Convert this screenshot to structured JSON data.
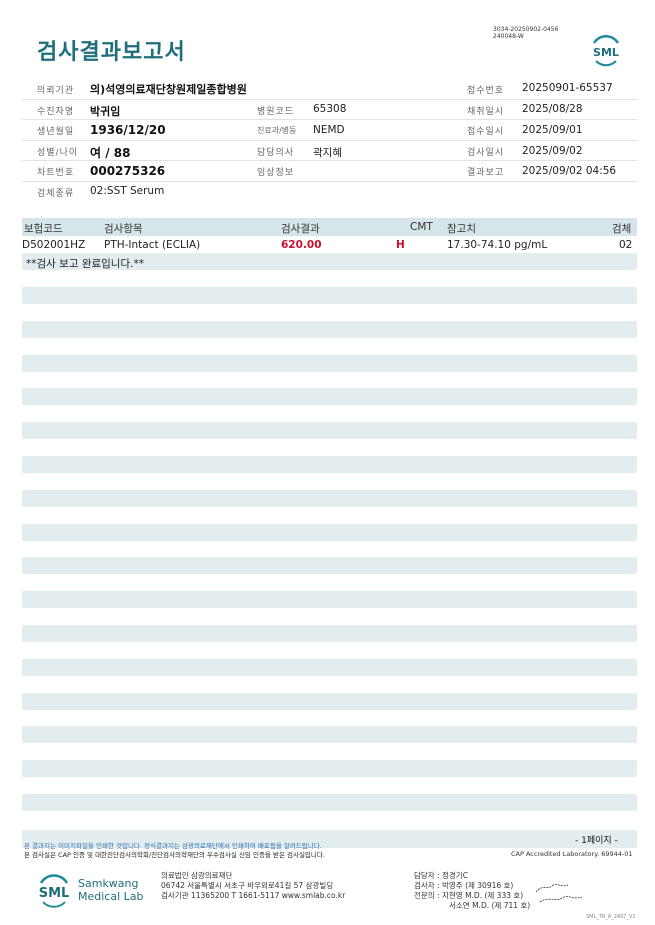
{
  "header": {
    "title": "검사결과보고서",
    "doc_id_line1": "3034-20250902-0456",
    "doc_id_line2": "240048-W",
    "logo_text": "SML"
  },
  "info": {
    "institution_label": "의뢰기관",
    "institution": "의)석영의료재단창원제일종합병원",
    "receipt_no_label": "접수번호",
    "receipt_no": "20250901-65537",
    "patient_label": "수진자명",
    "patient": "박귀임",
    "hospital_code_label": "병원코드",
    "hospital_code": "65308",
    "collected_label": "채취일시",
    "collected": "2025/08/28",
    "dob_label": "생년월일",
    "dob": "1936/12/20",
    "dept_label": "진료과/병동",
    "dept": "NEMD",
    "received_label": "접수일시",
    "received": "2025/09/01",
    "sex_age_label": "성별/나이",
    "sex_age": "여 / 88",
    "doctor_label": "담당의사",
    "doctor": "곽지혜",
    "tested_label": "검사일시",
    "tested": "2025/09/02",
    "chart_no_label": "차트번호",
    "chart_no": "000275326",
    "clinical_label": "임상정보",
    "clinical": "",
    "reported_label": "결과보고",
    "reported": "2025/09/02 04:56",
    "specimen_label": "검체종류",
    "specimen": "02:SST Serum"
  },
  "table": {
    "headers": [
      "보험코드",
      "검사항목",
      "검사결과",
      "CMT",
      "참고치",
      "검체"
    ],
    "rows": [
      {
        "code": "D502001HZ",
        "item": "PTH-Intact (ECLIA)",
        "result": "620.00",
        "cmt": "H",
        "reference": "17.30-74.10 pg/mL",
        "specimen": "02"
      }
    ],
    "note": "**검사 보고 완료입니다.**",
    "result_high_color": "#c8102e"
  },
  "footer": {
    "disclaimer_1": "본 결과지는 이미지파일을 인쇄한 것입니다. 정식결과지는 삼광의료재단에서 인쇄하여 배포됨을 알려드립니다.",
    "disclaimer_2": "본 검사실은 CAP 인증 및 대한진단검사의학회/진단검사의학재단의 우수검사실 신임 인증을 받은 검사실입니다.",
    "page": "- 1페이지 -",
    "cap": "CAP Accredited Laboratory. 69944-01",
    "logo_line1": "Samkwang",
    "logo_line2": "Medical Lab",
    "org": "의료법인 삼광의료재단",
    "address": "06742 서울특별시 서초구 바우뫼로41길 57 삼광빌딩",
    "contact": "검사기관 11365200 T 1661-5117 www.smlab.co.kr",
    "manager": "담당자 :  정경기C",
    "tester": "검사자 :  박영주 (제 30916 호)",
    "specialist_1": "전문의 :  지현영 M.D. (제 333 호)",
    "specialist_2": "서소연 M.D. (제 711 호)",
    "form_code": "SML_TR_A_2407_V1"
  },
  "colors": {
    "brand": "#1f6e7c",
    "stripe": "#e3edf0",
    "header_row": "#d6e5ea"
  }
}
